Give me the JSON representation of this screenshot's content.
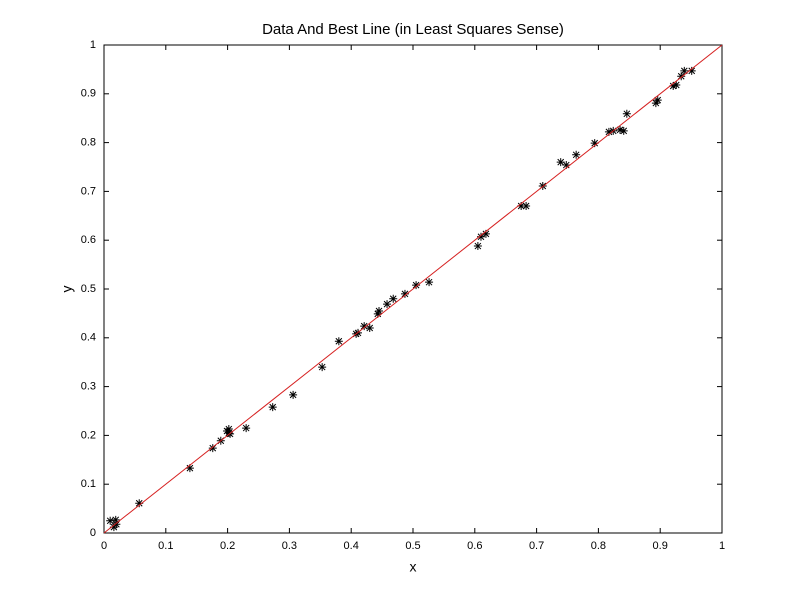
{
  "chart_data": {
    "type": "scatter",
    "title": "Data And Best Line (in Least Squares Sense)",
    "xlabel": "x",
    "ylabel": "y",
    "xlim": [
      0,
      1
    ],
    "ylim": [
      0,
      1
    ],
    "xticks": [
      0,
      0.1,
      0.2,
      0.3,
      0.4,
      0.5,
      0.6,
      0.7,
      0.8,
      0.9,
      1
    ],
    "yticks": [
      0,
      0.1,
      0.2,
      0.3,
      0.4,
      0.5,
      0.6,
      0.7,
      0.8,
      0.9,
      1
    ],
    "grid": false,
    "series": [
      {
        "color": "#000000",
        "marker": "*",
        "x": [
          0.01,
          0.016,
          0.019,
          0.02,
          0.057,
          0.139,
          0.176,
          0.189,
          0.199,
          0.202,
          0.202,
          0.204,
          0.23,
          0.273,
          0.306,
          0.353,
          0.38,
          0.408,
          0.411,
          0.421,
          0.43,
          0.443,
          0.445,
          0.458,
          0.468,
          0.487,
          0.505,
          0.526,
          0.605,
          0.61,
          0.618,
          0.675,
          0.683,
          0.71,
          0.739,
          0.748,
          0.764,
          0.794,
          0.817,
          0.824,
          0.835,
          0.841,
          0.846,
          0.893,
          0.896,
          0.921,
          0.926,
          0.934,
          0.939,
          0.951
        ],
        "values": [
          0.025,
          0.012,
          0.027,
          0.018,
          0.061,
          0.133,
          0.174,
          0.189,
          0.209,
          0.205,
          0.213,
          0.203,
          0.215,
          0.258,
          0.283,
          0.34,
          0.393,
          0.408,
          0.41,
          0.424,
          0.42,
          0.449,
          0.455,
          0.469,
          0.48,
          0.49,
          0.508,
          0.514,
          0.588,
          0.607,
          0.613,
          0.67,
          0.67,
          0.711,
          0.76,
          0.754,
          0.775,
          0.799,
          0.822,
          0.824,
          0.826,
          0.824,
          0.859,
          0.881,
          0.887,
          0.916,
          0.918,
          0.936,
          0.947,
          0.947
        ]
      },
      {
        "color": "#d62020",
        "marker": "line",
        "x": [
          0,
          1
        ],
        "values": [
          0,
          1
        ]
      }
    ]
  }
}
